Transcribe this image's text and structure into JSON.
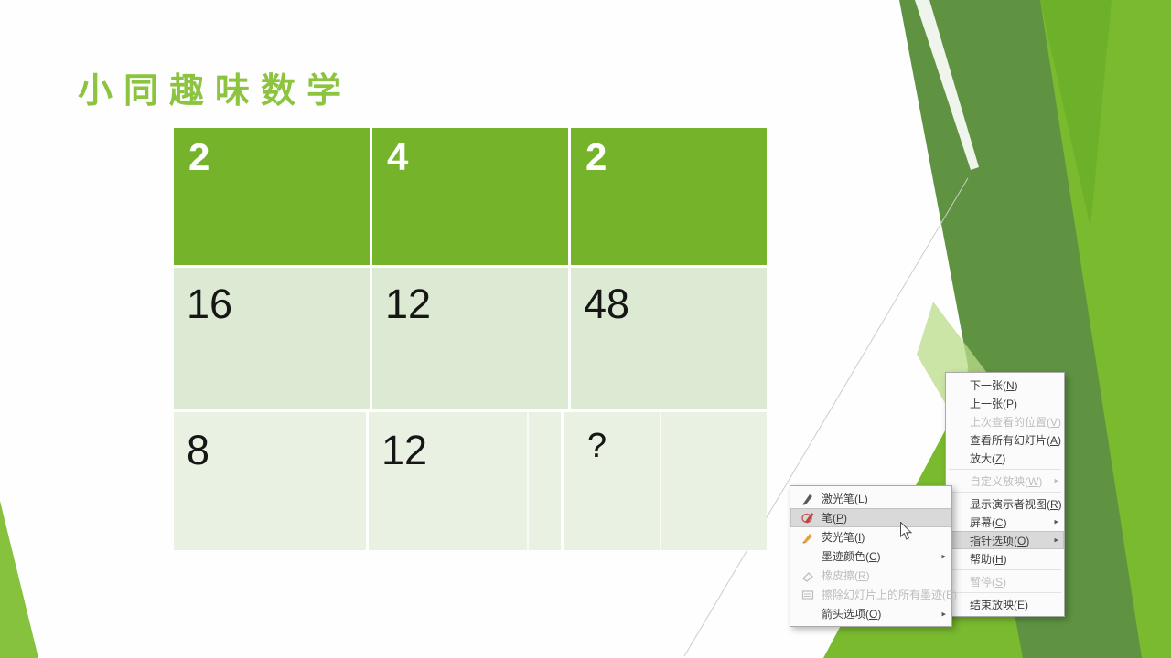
{
  "slide": {
    "title": "小同趣味数学",
    "table": {
      "header": [
        "2",
        "4",
        "2"
      ],
      "row2": [
        "16",
        "12",
        "48"
      ],
      "row3": [
        "8",
        "12",
        "?"
      ]
    }
  },
  "context_menu": {
    "items": [
      {
        "label": "下一张",
        "key": "N"
      },
      {
        "label": "上一张",
        "key": "P"
      },
      {
        "label": "上次查看的位置",
        "key": "V",
        "disabled": true
      },
      {
        "label": "查看所有幻灯片",
        "key": "A"
      },
      {
        "label": "放大",
        "key": "Z",
        "separator_after": true
      },
      {
        "label": "自定义放映",
        "key": "W",
        "disabled": true,
        "submenu": true,
        "separator_after": true
      },
      {
        "label": "显示演示者视图",
        "key": "R"
      },
      {
        "label": "屏幕",
        "key": "C",
        "submenu": true
      },
      {
        "label": "指针选项",
        "key": "O",
        "submenu": true,
        "highlighted": true
      },
      {
        "label": "帮助",
        "key": "H",
        "separator_after": true
      },
      {
        "label": "暂停",
        "key": "S",
        "disabled": true,
        "separator_after": true
      },
      {
        "label": "结束放映",
        "key": "E"
      }
    ]
  },
  "pointer_submenu": {
    "items": [
      {
        "label": "激光笔",
        "key": "L",
        "icon": "laser-pen-icon"
      },
      {
        "label": "笔",
        "key": "P",
        "icon": "pen-icon",
        "highlighted": true
      },
      {
        "label": "荧光笔",
        "key": "I",
        "icon": "highlighter-icon"
      },
      {
        "label": "墨迹颜色",
        "key": "C",
        "submenu": true
      },
      {
        "label": "橡皮擦",
        "key": "R",
        "icon": "eraser-icon",
        "disabled": true
      },
      {
        "label": "擦除幻灯片上的所有墨迹",
        "key": "E",
        "icon": "erase-all-icon",
        "disabled": true
      },
      {
        "label": "箭头选项",
        "key": "O",
        "submenu": true
      }
    ]
  },
  "colors": {
    "slide-bg": "#fefefe",
    "title-green": "#8cc43f",
    "table-header-green": "#75b32b",
    "table-row2": "#dcead3",
    "table-row3": "#e9f1e2",
    "deco-olive": "#5f9342",
    "deco-bright": "#79ba2e",
    "deco-wedge": "#86c23d",
    "menu-bg": "#fbfbfb",
    "menu-border": "#a9a9a9",
    "menu-text": "#3d3d3d",
    "menu-disabled": "#bdbdbd",
    "menu-highlight": "#d9d9d9"
  }
}
